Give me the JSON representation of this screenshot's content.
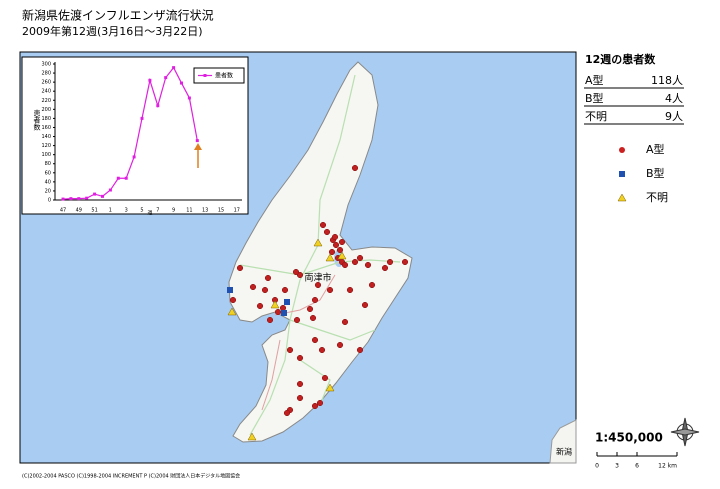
{
  "header": {
    "title": "新潟県佐渡インフルエンザ流行状況",
    "subtitle": "2009年第12週(3月16日～3月22日)"
  },
  "summary": {
    "title": "12週の患者数",
    "rows": [
      [
        "A型",
        "118人"
      ],
      [
        "B型",
        "4人"
      ],
      [
        "不明",
        "9人"
      ]
    ]
  },
  "legend": {
    "items": [
      {
        "label": "A型",
        "color": "#cc2020",
        "shape": "circle"
      },
      {
        "label": "B型",
        "color": "#2050b0",
        "shape": "square"
      },
      {
        "label": "不明",
        "color": "#f0d020",
        "shape": "triangle"
      }
    ]
  },
  "map": {
    "labels": [
      "両津市",
      "新潟"
    ],
    "scale": "1:450,000",
    "scale_bar": [
      "0",
      "3",
      "6",
      "12 km"
    ]
  },
  "footer": "(C)2002-2004 PASCO (C)1998-2004 INCREMENT P (C)2004 財団法人日本デジタル地図協会",
  "chart_data": {
    "type": "line",
    "y_label": "患者数",
    "x_label": "週",
    "categories": [
      47,
      null,
      49,
      null,
      51,
      null,
      1,
      null,
      3,
      null,
      5,
      null,
      7,
      null,
      9,
      null,
      11,
      null,
      13,
      null,
      15,
      null,
      17
    ],
    "series": [
      {
        "name": "患者数",
        "color": "#e020e0",
        "values": [
          2,
          3,
          3,
          4,
          13,
          8,
          22,
          48,
          48,
          95,
          180,
          264,
          208,
          270,
          292,
          258,
          225,
          131,
          null,
          null,
          null,
          null,
          null
        ]
      }
    ],
    "ylim": [
      0,
      300
    ],
    "yticks": [
      0,
      20,
      40,
      60,
      80,
      100,
      120,
      140,
      160,
      180,
      200,
      220,
      240,
      260,
      280,
      300
    ]
  }
}
